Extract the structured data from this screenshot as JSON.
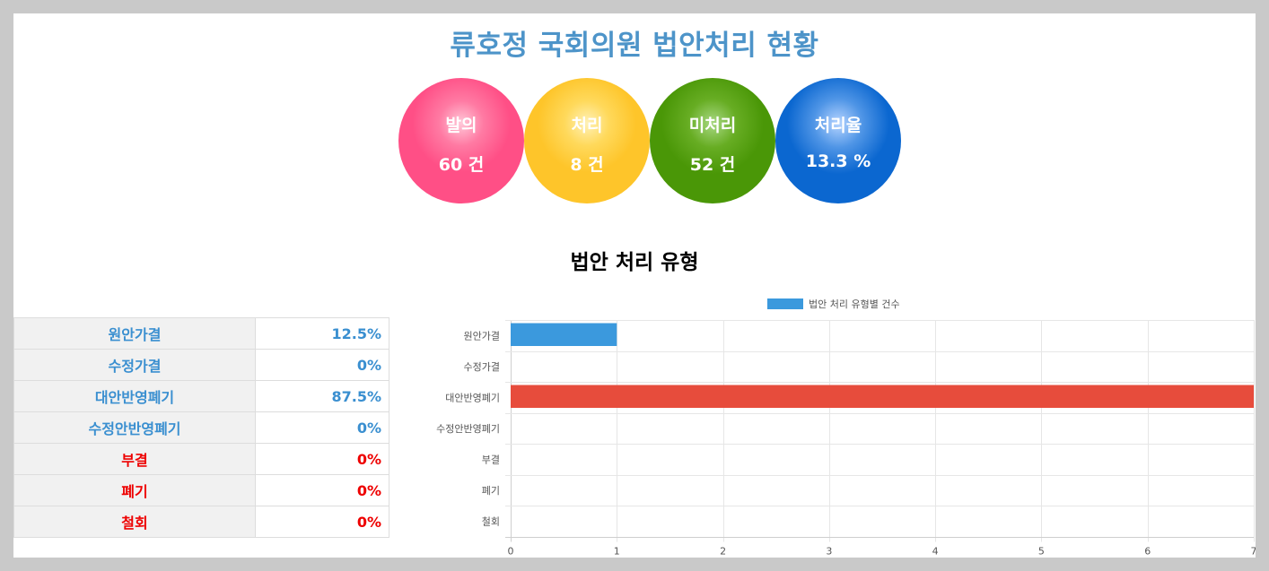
{
  "title": "류호정 국회의원 법안처리 현황",
  "summary": [
    {
      "label": "발의",
      "value": "60 건"
    },
    {
      "label": "처리",
      "value": "8 건"
    },
    {
      "label": "미처리",
      "value": "52 건"
    },
    {
      "label": "처리율",
      "value": "13.3 %"
    }
  ],
  "section_title": "법안 처리 유형",
  "table": [
    {
      "label": "원안가결",
      "value": "12.5%",
      "color": "blue"
    },
    {
      "label": "수정가결",
      "value": "0%",
      "color": "blue"
    },
    {
      "label": "대안반영폐기",
      "value": "87.5%",
      "color": "blue"
    },
    {
      "label": "수정안반영폐기",
      "value": "0%",
      "color": "blue"
    },
    {
      "label": "부결",
      "value": "0%",
      "color": "red"
    },
    {
      "label": "폐기",
      "value": "0%",
      "color": "red"
    },
    {
      "label": "철회",
      "value": "0%",
      "color": "red"
    }
  ],
  "chart_data": {
    "type": "bar",
    "orientation": "horizontal",
    "categories": [
      "원안가결",
      "수정가결",
      "대안반영폐기",
      "수정안반영폐기",
      "부결",
      "폐기",
      "철회"
    ],
    "series": [
      {
        "name": "법안 처리 유형별 건수",
        "values": [
          1,
          0,
          7,
          0,
          0,
          0,
          0
        ]
      }
    ],
    "bar_colors": [
      "#3b99dd",
      "#3b99dd",
      "#e74c3c",
      "#3b99dd",
      "#3b99dd",
      "#3b99dd",
      "#3b99dd"
    ],
    "legend_color": "#3b99dd",
    "xlim": [
      0,
      7
    ],
    "xticks": [
      "0",
      "1",
      "2",
      "3",
      "4",
      "5",
      "6",
      "7"
    ],
    "grid": true,
    "legend_position": "top"
  }
}
